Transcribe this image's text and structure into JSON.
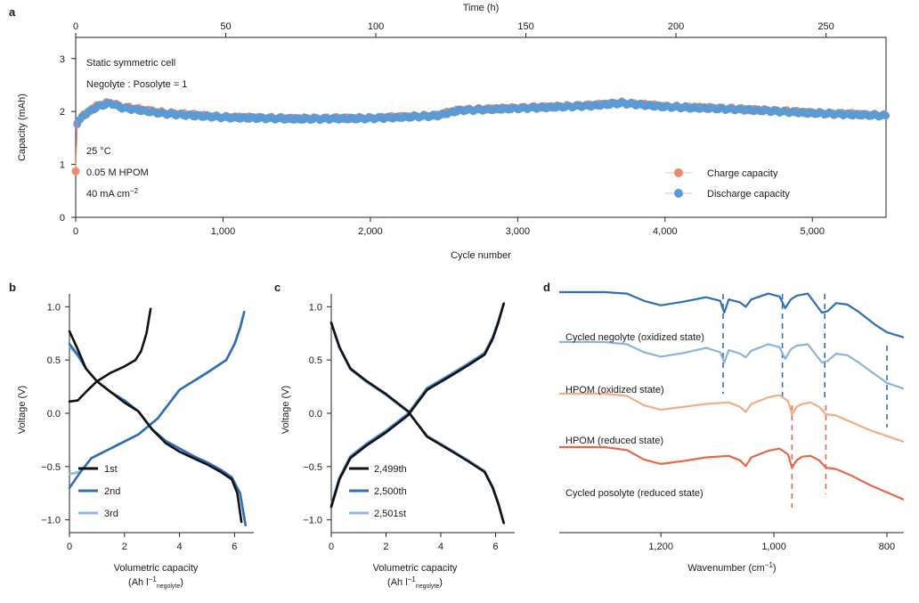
{
  "colors": {
    "charge": "#ef8a6a",
    "discharge": "#5b9bd5",
    "black": "#111111",
    "blue_dark": "#2f6db5",
    "blue_light": "#8fb9e3",
    "ftir": [
      "#2f6db5",
      "#8ab4de",
      "#f2ad86",
      "#e8664a"
    ]
  },
  "chart_data": [
    {
      "panel": "a",
      "type": "scatter",
      "xlabel": "Cycle number",
      "x_ticks": [
        "0",
        "1,000",
        "2,000",
        "3,000",
        "4,000",
        "5,000"
      ],
      "xlim": [
        0,
        5500
      ],
      "x2label": "Time (h)",
      "x2_ticks": [
        "0",
        "50",
        "100",
        "150",
        "200",
        "250"
      ],
      "x2lim": [
        0,
        270
      ],
      "ylabel": "Capacity (mAh)",
      "y_ticks": [
        "0",
        "1",
        "2",
        "3"
      ],
      "ylim": [
        0,
        3.4
      ],
      "annotations_top": [
        "Static symmetric cell",
        "Negolyte : Posolyte = 1"
      ],
      "annotations_bottom": [
        "25 °C",
        "0.05 M HPOM",
        "40 mA cm"
      ],
      "annotation_superscript": "−2",
      "legend": [
        "Charge capacity",
        "Discharge capacity"
      ],
      "series": [
        {
          "name": "Charge capacity",
          "x": [
            0,
            10,
            60,
            150,
            240,
            300,
            600,
            1000,
            1500,
            2000,
            2450,
            2600,
            3000,
            3500,
            3700,
            4000,
            4500,
            5000,
            5500
          ],
          "values": [
            0.87,
            1.8,
            1.95,
            2.12,
            2.18,
            2.1,
            1.98,
            1.9,
            1.87,
            1.88,
            1.93,
            2.03,
            2.07,
            2.12,
            2.17,
            2.1,
            2.05,
            1.98,
            1.93
          ]
        },
        {
          "name": "Discharge capacity",
          "x": [
            10,
            60,
            150,
            240,
            300,
            600,
            1000,
            1500,
            2000,
            2450,
            2600,
            3000,
            3500,
            3700,
            4000,
            4500,
            5000,
            5500
          ],
          "values": [
            1.78,
            1.94,
            2.1,
            2.16,
            2.08,
            1.96,
            1.89,
            1.86,
            1.87,
            1.92,
            2.02,
            2.06,
            2.11,
            2.16,
            2.09,
            2.04,
            1.97,
            1.92
          ]
        }
      ]
    },
    {
      "panel": "b",
      "type": "line",
      "xlabel": "Volumetric capacity",
      "xlabel2": "(Ah l",
      "xlabel2_sup": "−1",
      "xlabel2_sub": "negolyte",
      "xlabel2_close": ")",
      "ylabel": "Voltage (V)",
      "x_ticks": [
        "0",
        "2",
        "4",
        "6"
      ],
      "xlim": [
        0,
        6.7
      ],
      "y_ticks": [
        "−1.0",
        "−0.5",
        "0.0",
        "0.5",
        "1.0"
      ],
      "ylim": [
        -1.12,
        1.12
      ],
      "legend": [
        "1st",
        "2nd",
        "3rd"
      ],
      "series": [
        {
          "name": "1st",
          "charge": {
            "x": [
              0,
              0.3,
              0.6,
              1.0,
              1.5,
              2.0,
              2.4,
              2.6,
              2.8,
              2.95
            ],
            "y": [
              0.11,
              0.12,
              0.2,
              0.3,
              0.38,
              0.44,
              0.5,
              0.58,
              0.75,
              0.98
            ]
          },
          "discharge": {
            "x": [
              0,
              0.3,
              0.6,
              1.0,
              1.5,
              2.0,
              2.5,
              3.0,
              3.5,
              4.0,
              4.5,
              5.0,
              5.5,
              5.9,
              6.1,
              6.25
            ],
            "y": [
              0.77,
              0.6,
              0.42,
              0.3,
              0.2,
              0.1,
              0.02,
              -0.15,
              -0.28,
              -0.36,
              -0.42,
              -0.48,
              -0.55,
              -0.62,
              -0.75,
              -1.02
            ]
          }
        },
        {
          "name": "2nd",
          "charge": {
            "x": [
              0,
              0.4,
              0.8,
              1.5,
              2.5,
              3.2,
              4.0,
              5.0,
              5.7,
              6.0,
              6.2,
              6.35
            ],
            "y": [
              -0.7,
              -0.55,
              -0.42,
              -0.33,
              -0.2,
              -0.05,
              0.22,
              0.38,
              0.5,
              0.65,
              0.8,
              0.95
            ]
          },
          "discharge": {
            "x": [
              0,
              0.3,
              0.6,
              1.0,
              1.5,
              2.0,
              2.5,
              3.0,
              3.5,
              4.0,
              4.5,
              5.0,
              5.5,
              5.9,
              6.2,
              6.4
            ],
            "y": [
              0.65,
              0.55,
              0.42,
              0.3,
              0.2,
              0.12,
              0.02,
              -0.15,
              -0.26,
              -0.33,
              -0.4,
              -0.46,
              -0.53,
              -0.6,
              -0.75,
              -1.05
            ]
          }
        },
        {
          "name": "3rd",
          "charge": {
            "x": [
              0,
              0.4,
              0.8,
              1.5,
              2.5,
              3.2,
              4.0,
              5.0,
              5.7,
              6.0,
              6.2,
              6.35
            ],
            "y": [
              -0.57,
              -0.55,
              -0.42,
              -0.33,
              -0.2,
              -0.05,
              0.22,
              0.38,
              0.5,
              0.65,
              0.8,
              0.95
            ]
          },
          "discharge": {
            "x": [
              0,
              0.3,
              0.6,
              1.0,
              1.5,
              2.0,
              2.5,
              3.0,
              3.5,
              4.0,
              4.5,
              5.0,
              5.5,
              5.9,
              6.2,
              6.4
            ],
            "y": [
              0.63,
              0.54,
              0.42,
              0.3,
              0.2,
              0.12,
              0.02,
              -0.15,
              -0.26,
              -0.33,
              -0.4,
              -0.46,
              -0.53,
              -0.6,
              -0.75,
              -1.05
            ]
          }
        }
      ]
    },
    {
      "panel": "c",
      "type": "line",
      "xlabel": "Volumetric capacity",
      "xlabel2": "(Ah l",
      "xlabel2_sup": "−1",
      "xlabel2_sub": "negolyte",
      "xlabel2_close": ")",
      "ylabel": "Voltage (V)",
      "x_ticks": [
        "0",
        "2",
        "4",
        "6"
      ],
      "xlim": [
        0,
        6.7
      ],
      "y_ticks": [
        "−1.0",
        "−0.5",
        "0.0",
        "0.5",
        "1.0"
      ],
      "ylim": [
        -1.12,
        1.12
      ],
      "legend": [
        "2,499th",
        "2,500th",
        "2,501st"
      ],
      "series": [
        {
          "name": "2,499th",
          "charge": {
            "x": [
              0,
              0.3,
              0.7,
              1.3,
              2.0,
              2.8,
              3.5,
              4.3,
              5.0,
              5.6,
              5.9,
              6.1,
              6.3
            ],
            "y": [
              -0.88,
              -0.62,
              -0.42,
              -0.3,
              -0.18,
              -0.02,
              0.22,
              0.34,
              0.45,
              0.55,
              0.7,
              0.85,
              1.03
            ]
          },
          "discharge": {
            "x": [
              0,
              0.3,
              0.7,
              1.3,
              2.0,
              2.8,
              3.5,
              4.3,
              5.0,
              5.6,
              5.9,
              6.1,
              6.3
            ],
            "y": [
              0.85,
              0.62,
              0.42,
              0.3,
              0.18,
              0.02,
              -0.22,
              -0.34,
              -0.45,
              -0.55,
              -0.7,
              -0.85,
              -1.03
            ]
          }
        },
        {
          "name": "2,500th",
          "charge": {
            "x": [
              0,
              0.3,
              0.7,
              1.3,
              2.0,
              2.8,
              3.5,
              4.3,
              5.0,
              5.6,
              5.9,
              6.1,
              6.3
            ],
            "y": [
              -0.87,
              -0.61,
              -0.41,
              -0.29,
              -0.17,
              -0.01,
              0.23,
              0.35,
              0.46,
              0.56,
              0.71,
              0.86,
              1.03
            ]
          },
          "discharge": {
            "x": [
              0,
              0.3,
              0.7,
              1.3,
              2.0,
              2.8,
              3.5,
              4.3,
              5.0,
              5.6,
              5.9,
              6.1,
              6.3
            ],
            "y": [
              0.85,
              0.62,
              0.42,
              0.3,
              0.18,
              0.02,
              -0.22,
              -0.34,
              -0.45,
              -0.55,
              -0.7,
              -0.85,
              -1.03
            ]
          }
        },
        {
          "name": "2,501st",
          "charge": {
            "x": [
              0,
              0.3,
              0.7,
              1.3,
              2.0,
              2.8,
              3.5,
              4.3,
              5.0,
              5.6,
              5.9,
              6.1,
              6.3
            ],
            "y": [
              -0.86,
              -0.6,
              -0.4,
              -0.28,
              -0.16,
              0.0,
              0.24,
              0.36,
              0.47,
              0.57,
              0.72,
              0.87,
              1.03
            ]
          },
          "discharge": {
            "x": [
              0,
              0.3,
              0.7,
              1.3,
              2.0,
              2.8,
              3.5,
              4.3,
              5.0,
              5.6,
              5.9,
              6.1,
              6.3
            ],
            "y": [
              0.84,
              0.61,
              0.41,
              0.29,
              0.17,
              0.01,
              -0.21,
              -0.33,
              -0.44,
              -0.54,
              -0.69,
              -0.84,
              -1.03
            ]
          }
        }
      ]
    },
    {
      "panel": "d",
      "type": "line",
      "xlabel": "Wavenumber (cm",
      "xlabel_sup": "−1",
      "xlabel_close": ")",
      "x_ticks": [
        "1,200",
        "1,000",
        "800"
      ],
      "x_tick_values": [
        1200,
        1000,
        800
      ],
      "xlim": [
        1380,
        770
      ],
      "dashed_lines": [
        {
          "x": 1090,
          "color": "blue"
        },
        {
          "x": 985,
          "color": "blue"
        },
        {
          "x": 910,
          "color": "blue"
        },
        {
          "x": 800,
          "color": "blue"
        },
        {
          "x": 968,
          "color": "orange"
        },
        {
          "x": 908,
          "color": "orange"
        }
      ],
      "series": [
        {
          "name": "Cycled negolyte (oxidized state)",
          "x": [
            1380,
            1300,
            1260,
            1230,
            1200,
            1160,
            1120,
            1095,
            1088,
            1080,
            1060,
            1050,
            1040,
            1010,
            990,
            980,
            970,
            960,
            940,
            915,
            905,
            890,
            870,
            850,
            820,
            800,
            770
          ],
          "y": [
            1.0,
            1.0,
            0.98,
            0.88,
            0.82,
            0.87,
            0.93,
            0.88,
            0.72,
            0.9,
            0.86,
            0.8,
            0.9,
            0.98,
            0.94,
            0.78,
            0.9,
            0.95,
            0.98,
            0.72,
            0.74,
            0.85,
            0.83,
            0.73,
            0.55,
            0.45,
            0.38
          ]
        },
        {
          "name": "HPOM (oxidized state)",
          "x": [
            1380,
            1300,
            1260,
            1230,
            1200,
            1160,
            1120,
            1095,
            1088,
            1080,
            1060,
            1050,
            1040,
            1010,
            990,
            980,
            970,
            960,
            940,
            915,
            905,
            890,
            870,
            850,
            820,
            800,
            770
          ],
          "y": [
            1.0,
            1.0,
            0.97,
            0.86,
            0.8,
            0.85,
            0.92,
            0.86,
            0.72,
            0.89,
            0.84,
            0.79,
            0.88,
            0.97,
            0.93,
            0.77,
            0.9,
            0.95,
            0.97,
            0.72,
            0.74,
            0.84,
            0.82,
            0.72,
            0.55,
            0.44,
            0.36
          ]
        },
        {
          "name": "HPOM (reduced state)",
          "x": [
            1380,
            1300,
            1260,
            1230,
            1200,
            1160,
            1120,
            1080,
            1060,
            1050,
            1040,
            1010,
            990,
            975,
            968,
            960,
            950,
            935,
            920,
            908,
            890,
            860,
            830,
            800,
            770
          ],
          "y": [
            1.0,
            1.0,
            0.97,
            0.84,
            0.78,
            0.82,
            0.86,
            0.88,
            0.82,
            0.75,
            0.86,
            0.95,
            0.98,
            0.9,
            0.72,
            0.82,
            0.86,
            0.88,
            0.82,
            0.72,
            0.7,
            0.6,
            0.5,
            0.42,
            0.34
          ]
        },
        {
          "name": "Cycled posolyte (reduced state)",
          "x": [
            1380,
            1300,
            1260,
            1230,
            1200,
            1160,
            1120,
            1080,
            1060,
            1050,
            1040,
            1010,
            990,
            975,
            968,
            960,
            950,
            935,
            920,
            908,
            890,
            860,
            830,
            800,
            770
          ],
          "y": [
            1.0,
            1.0,
            0.96,
            0.83,
            0.77,
            0.81,
            0.86,
            0.88,
            0.82,
            0.74,
            0.86,
            0.95,
            0.98,
            0.9,
            0.72,
            0.82,
            0.87,
            0.88,
            0.82,
            0.72,
            0.7,
            0.6,
            0.48,
            0.38,
            0.28
          ]
        }
      ]
    }
  ],
  "panel_labels": [
    "a",
    "b",
    "c",
    "d"
  ]
}
